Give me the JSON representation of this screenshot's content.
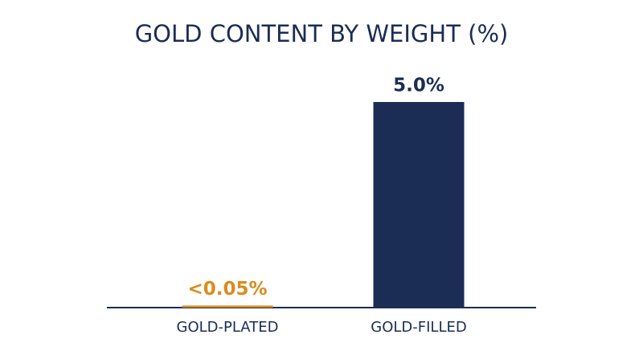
{
  "chart_data": {
    "type": "bar",
    "title": "GOLD CONTENT BY WEIGHT (%)",
    "categories": [
      "GOLD-PLATED",
      "GOLD-FILLED"
    ],
    "values": [
      0.05,
      5.0
    ],
    "value_labels": [
      "<0.05%",
      "5.0%"
    ],
    "colors": [
      "#d98c1f",
      "#1b2d55"
    ]
  }
}
